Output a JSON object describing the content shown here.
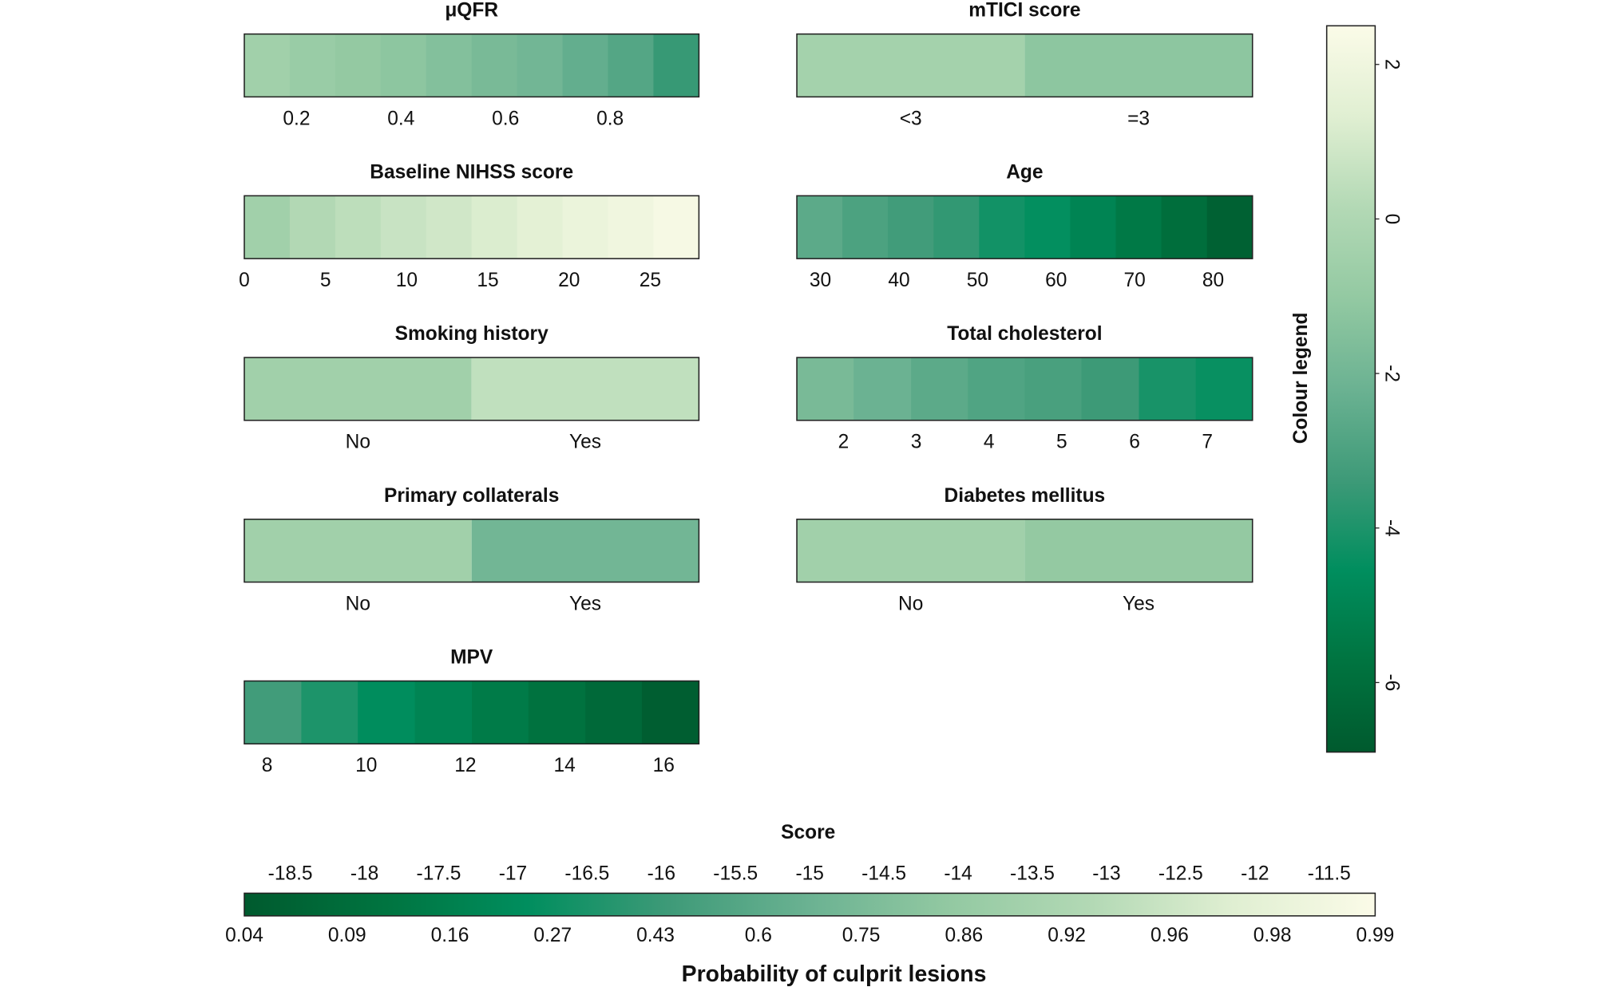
{
  "chart_data": [
    {
      "type": "heatstrip",
      "title": "μQFR",
      "xlim": [
        0.1,
        0.97
      ],
      "xticks": [
        0.2,
        0.4,
        0.6,
        0.8
      ],
      "bins": [
        0.1,
        0.187,
        0.274,
        0.361,
        0.448,
        0.535,
        0.622,
        0.709,
        0.796,
        0.883,
        0.97
      ],
      "values": [
        -0.5,
        -0.8,
        -1.0,
        -1.2,
        -1.5,
        -1.8,
        -2.0,
        -2.4,
        -2.8,
        -3.5
      ]
    },
    {
      "type": "heatstrip",
      "title": "mTICI score",
      "categories": [
        "<3",
        "=3"
      ],
      "values": [
        -0.4,
        -1.2
      ]
    },
    {
      "type": "heatstrip",
      "title": "Baseline NIHSS score",
      "xlim": [
        0,
        28
      ],
      "xticks": [
        0,
        5,
        10,
        15,
        20,
        25
      ],
      "bins": [
        0,
        2.8,
        5.6,
        8.4,
        11.2,
        14,
        16.8,
        19.6,
        22.4,
        25.2,
        28
      ],
      "values": [
        -0.5,
        0.1,
        0.4,
        0.7,
        0.9,
        1.2,
        1.5,
        1.8,
        2.0,
        2.3
      ]
    },
    {
      "type": "heatstrip",
      "title": "Age",
      "xlim": [
        27,
        85
      ],
      "xticks": [
        30,
        40,
        50,
        60,
        70,
        80
      ],
      "bins": [
        27,
        32.8,
        38.6,
        44.4,
        50.2,
        56,
        61.8,
        67.6,
        73.4,
        79.2,
        85
      ],
      "values": [
        -2.6,
        -3.0,
        -3.3,
        -3.6,
        -4.2,
        -4.5,
        -5.0,
        -5.5,
        -6.0,
        -6.6
      ]
    },
    {
      "type": "heatstrip",
      "title": "Smoking history",
      "categories": [
        "No",
        "Yes"
      ],
      "values": [
        -0.5,
        0.5
      ]
    },
    {
      "type": "heatstrip",
      "title": "Total cholesterol",
      "xlim": [
        1.36,
        7.62
      ],
      "xticks": [
        2,
        3,
        4,
        5,
        6,
        7
      ],
      "bins": [
        1.36,
        2.14,
        2.93,
        3.71,
        4.49,
        5.27,
        6.06,
        6.84,
        7.62
      ],
      "values": [
        -1.8,
        -2.2,
        -2.6,
        -2.9,
        -3.1,
        -3.4,
        -4.1,
        -4.4
      ]
    },
    {
      "type": "heatstrip",
      "title": "Primary collaterals",
      "categories": [
        "No",
        "Yes"
      ],
      "values": [
        -0.5,
        -2.0
      ]
    },
    {
      "type": "heatstrip",
      "title": "Diabetes mellitus",
      "categories": [
        "No",
        "Yes"
      ],
      "values": [
        -0.5,
        -1.0
      ]
    },
    {
      "type": "heatstrip",
      "title": "MPV",
      "xlim": [
        7.54,
        16.71
      ],
      "xticks": [
        8,
        10,
        12,
        14,
        16
      ],
      "bins": [
        7.54,
        8.69,
        9.83,
        10.98,
        12.13,
        13.27,
        14.42,
        15.56,
        16.71
      ],
      "values": [
        -3.3,
        -4.0,
        -4.6,
        -5.0,
        -5.4,
        -5.8,
        -6.2,
        -6.7
      ]
    },
    {
      "type": "colorbar",
      "title": "Colour legend",
      "ylim": [
        -6.9,
        2.5
      ],
      "yticks": [
        2,
        0,
        -2,
        -4,
        -6
      ],
      "colormap": [
        "#fbfbe8",
        "#e0efd2",
        "#b3d9b5",
        "#93c9a2",
        "#6bb292",
        "#3e9a78",
        "#008e5e",
        "#007440",
        "#005a2e"
      ]
    },
    {
      "type": "scale",
      "title": "Score",
      "xlim": [
        -18.81,
        -11.19
      ],
      "xticks": [
        -18.5,
        -18,
        -17.5,
        -17,
        -16.5,
        -16,
        -15.5,
        -15,
        -14.5,
        -14,
        -13.5,
        -13,
        -12.5,
        -12,
        -11.5
      ],
      "categories": [
        0.04,
        0.09,
        0.16,
        0.27,
        0.43,
        0.6,
        0.75,
        0.86,
        0.92,
        0.96,
        0.98,
        0.99
      ],
      "xlabel": "Probability of culprit lesions"
    }
  ]
}
